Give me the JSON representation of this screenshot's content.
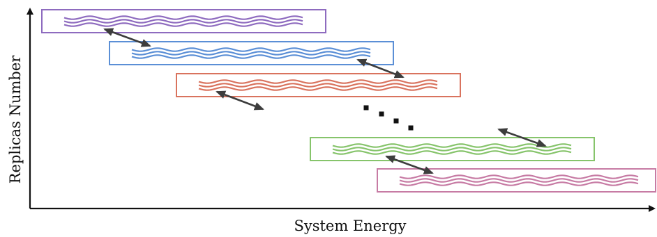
{
  "axes": {
    "x_label": "System Energy",
    "y_label": "Replicas Number"
  },
  "colors": {
    "axis": "#111111",
    "exchange_arrow": "#3d3d3d",
    "ellipsis": "#111111"
  },
  "replicas": [
    {
      "id": "replica-1",
      "color": "#8e6bbf"
    },
    {
      "id": "replica-2",
      "color": "#5b8fd6"
    },
    {
      "id": "replica-3",
      "color": "#d9735e"
    },
    {
      "id": "replica-4",
      "color": "#86c46b"
    },
    {
      "id": "replica-5",
      "color": "#c77ba4"
    }
  ],
  "exchanges": [
    {
      "between": [
        "replica-1",
        "replica-2"
      ]
    },
    {
      "between": [
        "replica-2",
        "replica-3"
      ]
    },
    {
      "between": [
        "replica-3",
        "omitted-replicas"
      ]
    },
    {
      "between": [
        "omitted-replicas",
        "replica-4"
      ]
    },
    {
      "between": [
        "replica-4",
        "replica-5"
      ]
    }
  ],
  "omitted_replicas_indicator": "dotted-ellipsis"
}
